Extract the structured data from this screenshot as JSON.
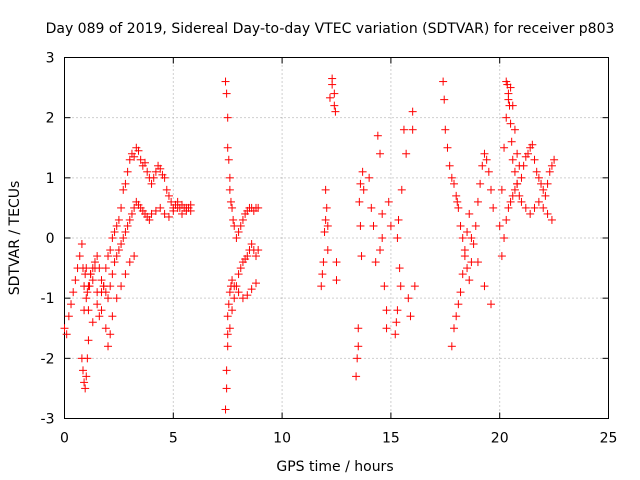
{
  "chart_data": {
    "type": "scatter",
    "title": "Day 089 of 2019, Sidereal Day-to-day VTEC variation (SDTVAR) for receiver p803",
    "xlabel": "GPS time / hours",
    "ylabel": "SDTVAR / TECUs",
    "xlim": [
      0,
      25
    ],
    "ylim": [
      -3,
      3
    ],
    "xticks": [
      0,
      5,
      10,
      15,
      20,
      25
    ],
    "yticks": [
      -3,
      -2,
      -1,
      0,
      1,
      2,
      3
    ],
    "grid": true,
    "marker": "+",
    "color": "#ff0000",
    "series": [
      {
        "name": "p803",
        "x": [
          0.0,
          0.1,
          0.2,
          0.3,
          0.4,
          0.5,
          0.6,
          0.7,
          0.8,
          0.85,
          0.9,
          0.95,
          1.0,
          1.05,
          1.1,
          1.15,
          1.2,
          1.3,
          1.4,
          1.5,
          1.6,
          1.7,
          1.8,
          1.9,
          2.0,
          2.1,
          2.2,
          2.3,
          2.4,
          2.5,
          2.6,
          2.7,
          2.8,
          2.9,
          3.0,
          3.1,
          3.2,
          3.3,
          3.4,
          3.5,
          3.6,
          3.7,
          3.8,
          3.9,
          4.0,
          4.1,
          4.2,
          4.3,
          4.4,
          4.5,
          4.6,
          4.7,
          4.8,
          4.9,
          5.0,
          5.1,
          5.2,
          5.3,
          5.4,
          5.5,
          5.6,
          5.7,
          5.8,
          0.9,
          1.0,
          1.1,
          1.2,
          1.3,
          1.4,
          1.5,
          1.6,
          1.7,
          1.8,
          1.9,
          2.0,
          2.1,
          2.2,
          2.3,
          2.4,
          2.5,
          2.6,
          2.7,
          2.8,
          2.9,
          3.0,
          3.1,
          3.2,
          3.3,
          3.4,
          3.5,
          3.6,
          3.7,
          3.8,
          3.9,
          4.0,
          4.2,
          4.4,
          4.6,
          4.8,
          5.0,
          5.2,
          5.4,
          5.6,
          5.8,
          0.8,
          0.85,
          0.9,
          0.95,
          1.0,
          1.05,
          1.1,
          1.3,
          1.5,
          1.7,
          1.9,
          2.0,
          2.1,
          2.2,
          2.4,
          2.6,
          2.8,
          3.0,
          3.2,
          7.4,
          7.45,
          7.5,
          7.5,
          7.55,
          7.6,
          7.6,
          7.65,
          7.7,
          7.75,
          7.8,
          7.9,
          8.0,
          8.1,
          8.2,
          8.3,
          8.4,
          8.5,
          8.6,
          8.7,
          8.8,
          8.9,
          7.4,
          7.45,
          7.5,
          7.6,
          7.7,
          7.8,
          7.9,
          8.0,
          8.1,
          8.2,
          8.3,
          8.4,
          8.5,
          8.6,
          8.7,
          8.8,
          8.9,
          7.45,
          7.5,
          7.5,
          7.55,
          7.6,
          7.65,
          7.7,
          7.8,
          8.0,
          8.2,
          8.4,
          8.6,
          8.8,
          11.8,
          11.85,
          11.9,
          11.95,
          12.0,
          12.0,
          12.05,
          12.1,
          12.1,
          12.2,
          12.3,
          12.3,
          12.4,
          12.4,
          12.45,
          12.5,
          12.5,
          13.4,
          13.45,
          13.5,
          13.5,
          13.55,
          13.6,
          13.6,
          13.65,
          13.7,
          13.75,
          14.0,
          14.1,
          14.2,
          14.3,
          14.4,
          14.5,
          14.5,
          14.6,
          14.6,
          14.7,
          14.8,
          14.8,
          14.9,
          15.0,
          15.2,
          15.25,
          15.3,
          15.3,
          15.35,
          15.4,
          15.45,
          15.5,
          15.6,
          15.7,
          15.8,
          15.9,
          16.0,
          16.0,
          16.1,
          17.4,
          17.45,
          17.5,
          17.6,
          17.7,
          17.8,
          17.9,
          18.0,
          18.05,
          18.1,
          18.2,
          18.3,
          18.4,
          18.5,
          18.6,
          18.7,
          18.8,
          18.9,
          19.0,
          19.1,
          19.2,
          19.3,
          19.4,
          19.5,
          19.6,
          19.7,
          17.8,
          17.9,
          18.0,
          18.1,
          18.2,
          18.3,
          18.4,
          18.5,
          18.6,
          18.7,
          19.0,
          19.3,
          19.6,
          20.0,
          20.1,
          20.2,
          20.3,
          20.4,
          20.5,
          20.6,
          20.7,
          20.8,
          20.9,
          21.0,
          21.1,
          21.2,
          21.3,
          21.4,
          21.5,
          21.6,
          21.7,
          21.8,
          21.9,
          22.0,
          22.1,
          22.2,
          22.3,
          22.4,
          22.5,
          20.1,
          20.2,
          20.3,
          20.4,
          20.5,
          20.6,
          20.7,
          20.8,
          20.9,
          21.0,
          21.2,
          21.4,
          21.6,
          21.8,
          22.0,
          22.2,
          22.4,
          20.3,
          20.35,
          20.4,
          20.45,
          20.5,
          20.55,
          20.6,
          20.7,
          20.8
        ],
        "y": [
          -1.5,
          -1.6,
          -1.3,
          -1.1,
          -0.9,
          -0.7,
          -0.5,
          -0.3,
          -0.1,
          -0.5,
          -0.8,
          -0.6,
          -0.5,
          -0.9,
          -1.2,
          -0.8,
          -0.6,
          -0.7,
          -0.5,
          -0.9,
          -1.3,
          -1.2,
          -0.8,
          -0.5,
          -0.3,
          -0.2,
          0.0,
          0.1,
          0.2,
          0.3,
          0.5,
          0.8,
          0.9,
          1.1,
          1.3,
          1.4,
          1.35,
          1.5,
          1.45,
          1.3,
          1.2,
          1.25,
          1.1,
          1.0,
          0.9,
          1.0,
          1.1,
          1.2,
          1.15,
          1.05,
          1.0,
          0.8,
          0.7,
          0.6,
          0.5,
          0.55,
          0.6,
          0.5,
          0.4,
          0.5,
          0.45,
          0.5,
          0.55,
          -1.2,
          -1.0,
          -0.8,
          -0.6,
          -0.5,
          -0.4,
          -0.3,
          -0.5,
          -0.7,
          -0.8,
          -0.9,
          -1.0,
          -0.8,
          -0.6,
          -0.4,
          -0.3,
          -0.2,
          -0.1,
          0.0,
          0.1,
          0.2,
          0.3,
          0.4,
          0.5,
          0.6,
          0.55,
          0.5,
          0.45,
          0.4,
          0.35,
          0.3,
          0.4,
          0.45,
          0.5,
          0.4,
          0.35,
          0.45,
          0.5,
          0.55,
          0.5,
          0.45,
          -2.0,
          -2.2,
          -2.4,
          -2.5,
          -2.3,
          -2.0,
          -1.7,
          -1.4,
          -1.1,
          -0.9,
          -1.5,
          -1.8,
          -1.6,
          -1.3,
          -1.0,
          -0.8,
          -0.6,
          -0.4,
          -0.3,
          2.6,
          2.4,
          2.0,
          1.5,
          1.3,
          1.0,
          0.8,
          0.6,
          0.5,
          0.3,
          0.2,
          0.0,
          0.1,
          0.2,
          0.3,
          0.4,
          0.45,
          0.5,
          0.5,
          0.45,
          0.5,
          0.5,
          -2.85,
          -2.5,
          -1.8,
          -1.5,
          -1.2,
          -1.0,
          -0.8,
          -0.6,
          -0.5,
          -0.4,
          -0.35,
          -0.3,
          -0.2,
          -0.1,
          -0.2,
          -0.3,
          -0.2,
          -2.2,
          -1.6,
          -1.3,
          -1.1,
          -0.9,
          -0.8,
          -0.7,
          -0.8,
          -0.9,
          -1.0,
          -0.95,
          -0.85,
          -0.75,
          -0.8,
          -0.6,
          -0.4,
          0.1,
          0.3,
          0.8,
          0.5,
          0.2,
          -0.2,
          2.33,
          2.65,
          2.55,
          2.2,
          2.4,
          2.1,
          -0.7,
          -0.4,
          -2.3,
          -2.0,
          -1.8,
          -1.5,
          0.6,
          0.9,
          0.2,
          -0.3,
          1.1,
          0.8,
          1.0,
          0.5,
          0.2,
          -0.4,
          1.7,
          1.4,
          -0.2,
          0.4,
          0.0,
          -0.8,
          -1.5,
          -1.2,
          0.6,
          0.2,
          -1.6,
          -1.4,
          -1.2,
          0.0,
          0.3,
          -0.5,
          -0.8,
          0.8,
          1.8,
          1.4,
          -1.0,
          -1.3,
          2.1,
          1.8,
          -0.8,
          2.6,
          2.3,
          1.8,
          1.5,
          1.2,
          1.0,
          0.9,
          0.7,
          0.6,
          0.5,
          0.2,
          0.0,
          -0.3,
          -0.5,
          -0.7,
          -0.4,
          -0.1,
          0.2,
          0.6,
          0.9,
          1.2,
          1.4,
          1.3,
          1.1,
          0.8,
          0.5,
          -1.8,
          -1.5,
          -1.3,
          -1.1,
          -0.9,
          -0.6,
          -0.2,
          0.1,
          0.4,
          0.0,
          -0.4,
          -0.8,
          -1.1,
          0.2,
          0.8,
          1.5,
          2.0,
          2.3,
          2.5,
          2.2,
          1.8,
          1.4,
          1.2,
          1.0,
          1.2,
          1.35,
          1.4,
          1.5,
          1.55,
          1.3,
          1.1,
          1.0,
          0.9,
          0.8,
          0.7,
          0.9,
          1.1,
          1.2,
          1.3,
          -0.3,
          0.0,
          0.3,
          0.5,
          0.6,
          0.7,
          0.8,
          0.9,
          0.7,
          0.6,
          0.5,
          0.4,
          0.5,
          0.6,
          0.5,
          0.4,
          0.3,
          2.6,
          2.55,
          2.4,
          2.2,
          1.9,
          1.6,
          1.3,
          1.1,
          0.9
        ]
      }
    ]
  }
}
